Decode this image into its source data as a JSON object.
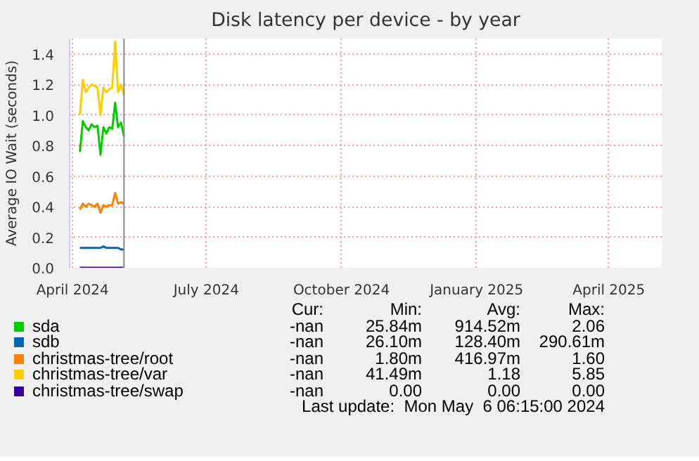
{
  "chart_data": {
    "type": "line",
    "title": "Disk latency per device - by year",
    "ylabel": "Average IO Wait (seconds)",
    "x": [
      "2024-04-06",
      "2024-04-08",
      "2024-04-10",
      "2024-04-12",
      "2024-04-14",
      "2024-04-16",
      "2024-04-18",
      "2024-04-20",
      "2024-04-22",
      "2024-04-24",
      "2024-04-26",
      "2024-04-28",
      "2024-04-30",
      "2024-05-02",
      "2024-05-04",
      "2024-05-06"
    ],
    "series": [
      {
        "name": "sda",
        "color": "#00cc00",
        "values": [
          0.76,
          0.96,
          0.92,
          0.9,
          0.94,
          0.92,
          0.93,
          0.74,
          0.92,
          0.88,
          0.92,
          0.91,
          1.08,
          0.92,
          0.95,
          0.86
        ]
      },
      {
        "name": "sdb",
        "color": "#0066b3",
        "values": [
          0.13,
          0.13,
          0.13,
          0.13,
          0.13,
          0.13,
          0.13,
          0.13,
          0.14,
          0.13,
          0.13,
          0.13,
          0.13,
          0.13,
          0.12,
          0.12
        ]
      },
      {
        "name": "christmas-tree/root",
        "color": "#ff8000",
        "values": [
          0.38,
          0.42,
          0.4,
          0.42,
          0.41,
          0.4,
          0.42,
          0.36,
          0.41,
          0.4,
          0.41,
          0.41,
          0.49,
          0.42,
          0.43,
          0.42
        ]
      },
      {
        "name": "christmas-tree/var",
        "color": "#ffcc00",
        "values": [
          1.0,
          1.23,
          1.15,
          1.18,
          1.2,
          1.19,
          1.18,
          1.0,
          1.18,
          1.15,
          1.17,
          1.18,
          1.48,
          1.15,
          1.2,
          1.13
        ]
      },
      {
        "name": "christmas-tree/swap",
        "color": "#330099",
        "values": [
          0,
          0,
          0,
          0,
          0,
          0,
          0,
          0,
          0,
          0,
          0,
          0,
          0,
          0,
          0,
          0
        ]
      }
    ],
    "xlim": [
      "2024-03-30",
      "2025-05-07"
    ],
    "xticks": [
      {
        "value": "2024-04-01",
        "label": "April 2024"
      },
      {
        "value": "2024-07-01",
        "label": "July 2024"
      },
      {
        "value": "2024-10-01",
        "label": "October 2024"
      },
      {
        "value": "2025-01-01",
        "label": "January 2025"
      },
      {
        "value": "2025-04-01",
        "label": "April 2025"
      }
    ],
    "ylim": [
      0,
      1.5
    ],
    "yticks": [
      {
        "value": 0,
        "label": "0.0"
      },
      0.2,
      0.4,
      0.6,
      0.8,
      {
        "value": 1,
        "label": "1.0"
      },
      1.2,
      1.4
    ],
    "grid": true,
    "legend": "bottom",
    "line_style": "solid",
    "marker": "none",
    "ref_lines": [
      {
        "axis": "x",
        "value": "2024-05-06",
        "color": "#888888"
      }
    ],
    "annotations": [
      "Cur:",
      "Min:",
      "Avg:",
      "Max:",
      "-nan",
      "25.84m",
      "914.52m",
      "2.06",
      "-nan",
      "26.10m",
      "128.40m",
      "290.61m",
      "-nan",
      "1.80m",
      "416.97m",
      "1.60",
      "-nan",
      "41.49m",
      "1.18",
      "5.85",
      "-nan",
      "0.00",
      "0.00",
      "0.00",
      "Last update:  Mon May  6 06:15:00 2024"
    ]
  }
}
